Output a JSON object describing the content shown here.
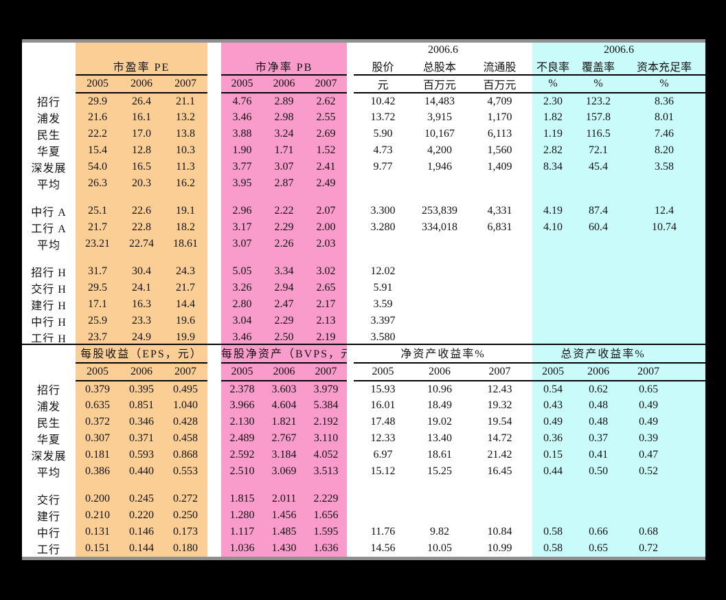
{
  "colors": {
    "orange": "#FACE94",
    "pink": "#F99CCB",
    "cyan": "#C9FBFB",
    "edge": "#909090",
    "panel": "#FFFFFF",
    "background": "#000000"
  },
  "table1": {
    "price_period": "2006.6",
    "quality_period": "2006.6",
    "pe_title": "市盈率 PE",
    "pb_title": "市净率 PB",
    "years": [
      "2005",
      "2006",
      "2007"
    ],
    "price_headers": [
      "股价",
      "总股本",
      "流通股"
    ],
    "price_units": [
      "元",
      "百万元",
      "百万元"
    ],
    "quality_headers": [
      "不良率",
      "覆盖率",
      "资本充足率"
    ],
    "quality_units": [
      "%",
      "%",
      "%"
    ],
    "rows": [
      [
        "招行",
        "29.9",
        "26.4",
        "21.1",
        "4.76",
        "2.89",
        "2.62",
        "10.42",
        "14,483",
        "4,709",
        "2.30",
        "123.2",
        "8.36"
      ],
      [
        "浦发",
        "21.6",
        "16.1",
        "13.2",
        "3.46",
        "2.98",
        "2.55",
        "13.72",
        "3,915",
        "1,170",
        "1.82",
        "157.8",
        "8.01"
      ],
      [
        "民生",
        "22.2",
        "17.0",
        "13.8",
        "3.88",
        "3.24",
        "2.69",
        "5.90",
        "10,167",
        "6,113",
        "1.19",
        "116.5",
        "7.46"
      ],
      [
        "华夏",
        "15.4",
        "12.8",
        "10.3",
        "1.90",
        "1.71",
        "1.52",
        "4.73",
        "4,200",
        "1,560",
        "2.82",
        "72.1",
        "8.20"
      ],
      [
        "深发展",
        "54.0",
        "16.5",
        "11.3",
        "3.77",
        "3.07",
        "2.41",
        "9.77",
        "1,946",
        "1,409",
        "8.34",
        "45.4",
        "3.58"
      ],
      [
        "平均",
        "26.3",
        "20.3",
        "16.2",
        "3.95",
        "2.87",
        "2.49",
        "",
        "",
        "",
        "",
        "",
        ""
      ],
      [],
      [
        "中行 A",
        "25.1",
        "22.6",
        "19.1",
        "2.96",
        "2.22",
        "2.07",
        "3.300",
        "253,839",
        "4,331",
        "4.19",
        "87.4",
        "12.4"
      ],
      [
        "工行 A",
        "21.7",
        "22.8",
        "18.2",
        "3.17",
        "2.29",
        "2.00",
        "3.280",
        "334,018",
        "6,831",
        "4.10",
        "60.4",
        "10.74"
      ],
      [
        "平均",
        "23.21",
        "22.74",
        "18.61",
        "3.07",
        "2.26",
        "2.03",
        "",
        "",
        "",
        "",
        "",
        ""
      ],
      [],
      [
        "招行 H",
        "31.7",
        "30.4",
        "24.3",
        "5.05",
        "3.34",
        "3.02",
        "12.02",
        "",
        "",
        "",
        "",
        ""
      ],
      [
        "交行 H",
        "29.5",
        "24.1",
        "21.7",
        "3.26",
        "2.94",
        "2.65",
        "5.91",
        "",
        "",
        "",
        "",
        ""
      ],
      [
        "建行 H",
        "17.1",
        "16.3",
        "14.4",
        "2.80",
        "2.47",
        "2.17",
        "3.59",
        "",
        "",
        "",
        "",
        ""
      ],
      [
        "中行 H",
        "25.9",
        "23.3",
        "19.6",
        "3.04",
        "2.29",
        "2.13",
        "3.397",
        "",
        "",
        "",
        "",
        ""
      ],
      [
        "工行 H",
        "23.7",
        "24.9",
        "19.9",
        "3.46",
        "2.50",
        "2.19",
        "3.580",
        "",
        "",
        "",
        "",
        ""
      ]
    ]
  },
  "table2": {
    "eps_title": "每股收益（EPS，元）",
    "bvps_title": "每股净资产（BVPS，元）",
    "roe_title": "净资产收益率%",
    "roa_title": "总资产收益率%",
    "years": [
      "2005",
      "2006",
      "2007"
    ],
    "rows": [
      [
        "招行",
        "0.379",
        "0.395",
        "0.495",
        "2.378",
        "3.603",
        "3.979",
        "15.93",
        "10.96",
        "12.43",
        "0.54",
        "0.62",
        "0.65"
      ],
      [
        "浦发",
        "0.635",
        "0.851",
        "1.040",
        "3.966",
        "4.604",
        "5.384",
        "16.01",
        "18.49",
        "19.32",
        "0.43",
        "0.48",
        "0.49"
      ],
      [
        "民生",
        "0.372",
        "0.346",
        "0.428",
        "2.130",
        "1.821",
        "2.192",
        "17.48",
        "19.02",
        "19.54",
        "0.49",
        "0.48",
        "0.49"
      ],
      [
        "华夏",
        "0.307",
        "0.371",
        "0.458",
        "2.489",
        "2.767",
        "3.110",
        "12.33",
        "13.40",
        "14.72",
        "0.36",
        "0.37",
        "0.39"
      ],
      [
        "深发展",
        "0.181",
        "0.593",
        "0.868",
        "2.592",
        "3.184",
        "4.052",
        "6.97",
        "18.61",
        "21.42",
        "0.15",
        "0.41",
        "0.47"
      ],
      [
        "平均",
        "0.386",
        "0.440",
        "0.553",
        "2.510",
        "3.069",
        "3.513",
        "15.12",
        "15.25",
        "16.45",
        "0.44",
        "0.50",
        "0.52"
      ],
      [],
      [
        "交行",
        "0.200",
        "0.245",
        "0.272",
        "1.815",
        "2.011",
        "2.229",
        "",
        "",
        "",
        "",
        "",
        ""
      ],
      [
        "建行",
        "0.210",
        "0.220",
        "0.250",
        "1.280",
        "1.456",
        "1.656",
        "",
        "",
        "",
        "",
        "",
        ""
      ],
      [
        "中行",
        "0.131",
        "0.146",
        "0.173",
        "1.117",
        "1.485",
        "1.595",
        "11.76",
        "9.82",
        "10.84",
        "0.58",
        "0.66",
        "0.68"
      ],
      [
        "工行",
        "0.151",
        "0.144",
        "0.180",
        "1.036",
        "1.430",
        "1.636",
        "14.56",
        "10.05",
        "10.99",
        "0.58",
        "0.65",
        "0.72"
      ]
    ]
  }
}
